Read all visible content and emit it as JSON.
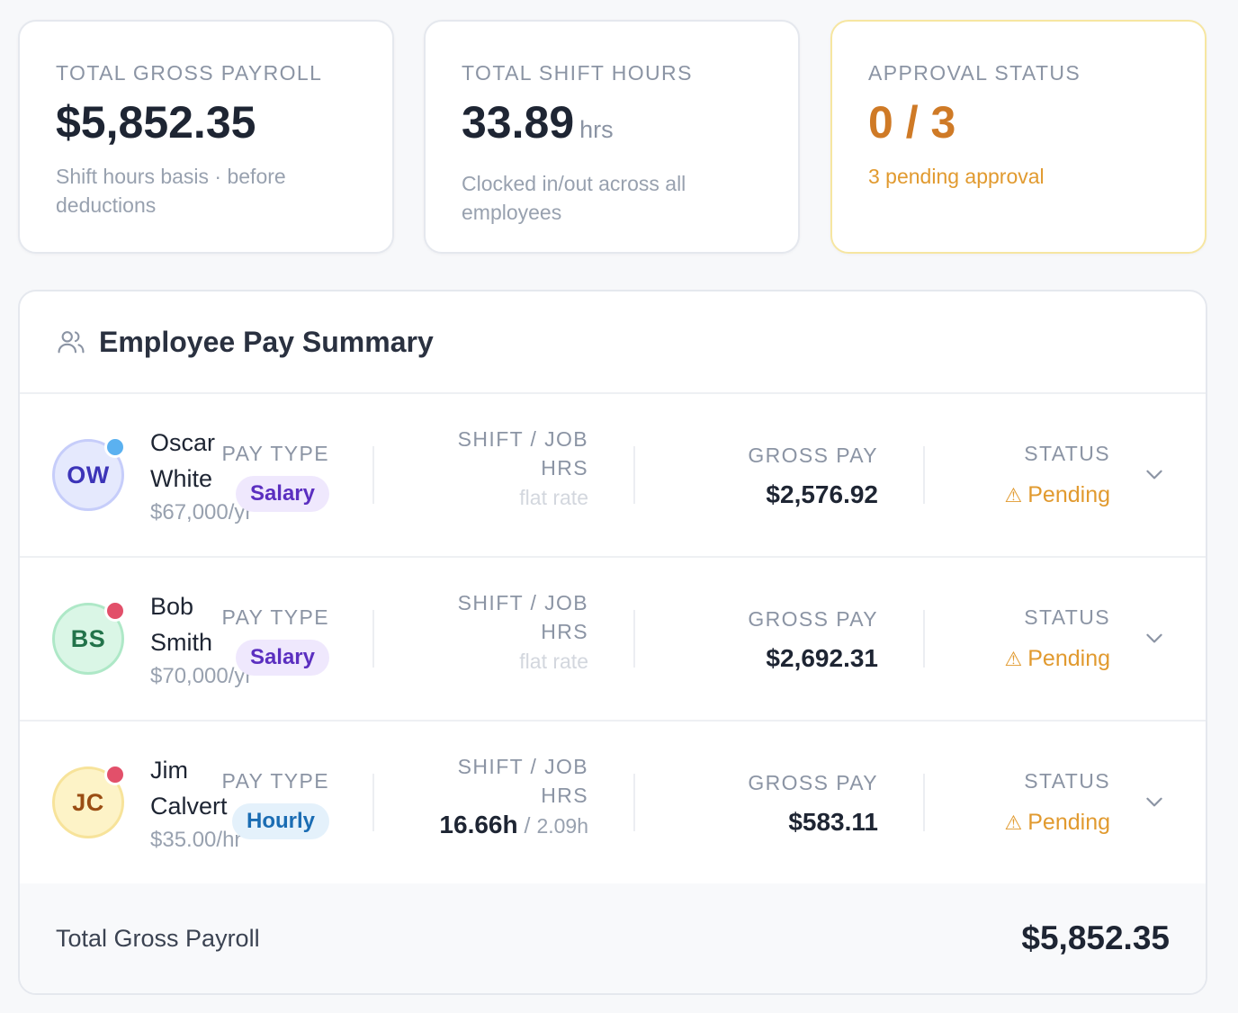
{
  "cards": {
    "gross": {
      "label": "TOTAL GROSS PAYROLL",
      "value": "$5,852.35",
      "sub": "Shift hours basis · before deductions"
    },
    "hours": {
      "label": "TOTAL SHIFT HOURS",
      "value": "33.89",
      "unit": "hrs",
      "sub": "Clocked in/out across all employees"
    },
    "approval": {
      "label": "APPROVAL STATUS",
      "value": "0 / 3",
      "sub": "3 pending approval"
    }
  },
  "summary": {
    "title": "Employee Pay Summary",
    "column_labels": {
      "pay_type": "PAY TYPE",
      "hours": "SHIFT / JOB HRS",
      "gross": "GROSS PAY",
      "status": "STATUS"
    },
    "employees": [
      {
        "initials": "OW",
        "name": "Oscar White",
        "rate": "$67,000/yr",
        "pay_type": "Salary",
        "hours_text": "flat rate",
        "gross": "$2,576.92",
        "status": "Pending",
        "dot_color": "#5bb1f0"
      },
      {
        "initials": "BS",
        "name": "Bob Smith",
        "rate": "$70,000/yr",
        "pay_type": "Salary",
        "hours_text": "flat rate",
        "gross": "$2,692.31",
        "status": "Pending",
        "dot_color": "#e2506a"
      },
      {
        "initials": "JC",
        "name": "Jim Calvert",
        "rate": "$35.00/hr",
        "pay_type": "Hourly",
        "shift_hours": "16.66h",
        "job_hours": "2.09h",
        "gross": "$583.11",
        "status": "Pending",
        "dot_color": "#e2506a"
      }
    ],
    "footer": {
      "label": "Total Gross Payroll",
      "value": "$5,852.35"
    }
  }
}
